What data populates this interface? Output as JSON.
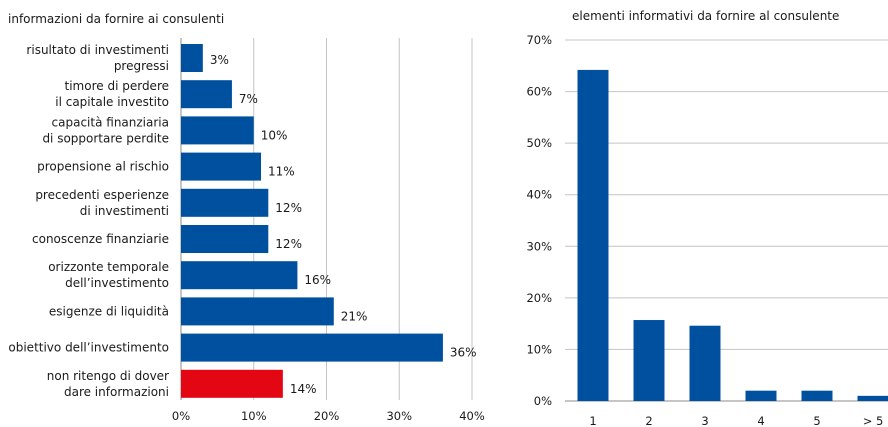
{
  "chart_data": [
    {
      "type": "bar",
      "orientation": "horizontal",
      "title": "informazioni da fornire ai consulenti",
      "categories": [
        [
          "risultato di investimenti",
          "pregressi"
        ],
        [
          "timore di perdere",
          "il capitale investito"
        ],
        [
          "capacità finanziaria",
          "di sopportare perdite"
        ],
        [
          "propensione al rischio"
        ],
        [
          "precedenti esperienze",
          "di investimenti"
        ],
        [
          "conoscenze finanziarie"
        ],
        [
          "orizzonte temporale",
          "dell’investimento"
        ],
        [
          "esigenze di liquidità"
        ],
        [
          "obiettivo dell’investimento"
        ],
        [
          "non ritengo di dover",
          "dare informazioni"
        ]
      ],
      "values": [
        3,
        7,
        10,
        11,
        12,
        12,
        16,
        21,
        36,
        14
      ],
      "value_labels": [
        "3%",
        "7%",
        "10%",
        "11%",
        "12%",
        "12%",
        "16%",
        "21%",
        "36%",
        "14%"
      ],
      "bar_colors": [
        "#0050a0",
        "#0050a0",
        "#0050a0",
        "#0050a0",
        "#0050a0",
        "#0050a0",
        "#0050a0",
        "#0050a0",
        "#0050a0",
        "#e30613"
      ],
      "xlim": [
        0,
        40
      ],
      "x_ticks": [
        0,
        10,
        20,
        30,
        40
      ],
      "x_tick_labels": [
        "0%",
        "10%",
        "20%",
        "30%",
        "40%"
      ],
      "grid": true
    },
    {
      "type": "bar",
      "orientation": "vertical",
      "title": "elementi informativi da fornire al consulente",
      "categories": [
        "1",
        "2",
        "3",
        "4",
        "5",
        "> 5"
      ],
      "values": [
        64.2,
        15.7,
        14.6,
        2.0,
        2.0,
        1.0
      ],
      "bar_color": "#0050a0",
      "ylim": [
        0,
        70
      ],
      "y_ticks": [
        0,
        10,
        20,
        30,
        40,
        50,
        60,
        70
      ],
      "y_tick_labels": [
        "0%",
        "10%",
        "20%",
        "30%",
        "40%",
        "50%",
        "60%",
        "70%"
      ],
      "grid": true
    }
  ]
}
